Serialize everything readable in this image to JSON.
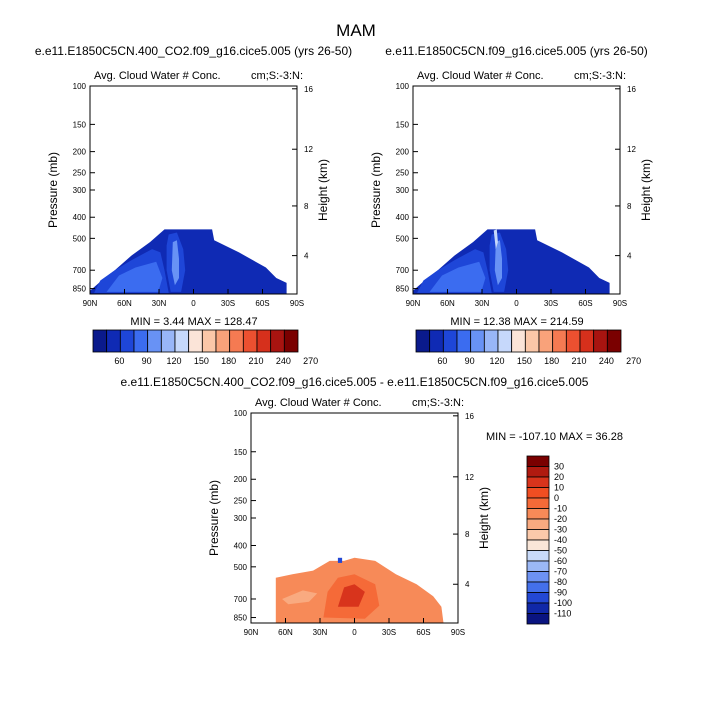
{
  "figure": {
    "title": "MAM"
  },
  "chart_data": [
    {
      "type": "contour",
      "title": "e.e11.E1850C5CN.400_CO2.f09_g16.cice5.005 (yrs 26-50)",
      "subtitle_left": "Avg. Cloud Water # Conc.",
      "subtitle_right": "cm;S:-3:N:",
      "ylabel": "Pressure (mb)",
      "ylabel_right": "Height (km)",
      "x_ticks": [
        "90N",
        "60N",
        "30N",
        "0",
        "30S",
        "60S",
        "90S"
      ],
      "y_ticks": [
        "100",
        "150",
        "200",
        "250",
        "300",
        "400",
        "500",
        "700",
        "850"
      ],
      "height_ticks": [
        "16",
        "12",
        "8",
        "4"
      ],
      "stats": "MIN =   3.44  MAX = 128.47",
      "colorbar_labels": [
        "60",
        "90",
        "120",
        "150",
        "180",
        "210",
        "240",
        "270"
      ],
      "colorbar_colors": [
        "#0a1a8c",
        "#0f2ab4",
        "#1e46d8",
        "#3b6cf0",
        "#6892f5",
        "#98b6f8",
        "#c6d8fb",
        "#fbe4d8",
        "#fbc7a8",
        "#f9a27a",
        "#f57a52",
        "#ec5030",
        "#d6301c",
        "#a81410",
        "#7a0000"
      ]
    },
    {
      "type": "contour",
      "title": "e.e11.E1850C5CN.f09_g16.cice5.005 (yrs 26-50)",
      "subtitle_left": "Avg. Cloud Water # Conc.",
      "subtitle_right": "cm;S:-3:N:",
      "ylabel": "Pressure (mb)",
      "ylabel_right": "Height (km)",
      "x_ticks": [
        "90N",
        "60N",
        "30N",
        "0",
        "30S",
        "60S",
        "90S"
      ],
      "y_ticks": [
        "100",
        "150",
        "200",
        "250",
        "300",
        "400",
        "500",
        "700",
        "850"
      ],
      "height_ticks": [
        "16",
        "12",
        "8",
        "4"
      ],
      "stats": "MIN =  12.38  MAX = 214.59",
      "colorbar_labels": [
        "60",
        "90",
        "120",
        "150",
        "180",
        "210",
        "240",
        "270"
      ],
      "colorbar_colors": [
        "#0a1a8c",
        "#0f2ab4",
        "#1e46d8",
        "#3b6cf0",
        "#6892f5",
        "#98b6f8",
        "#c6d8fb",
        "#fbe4d8",
        "#fbc7a8",
        "#f9a27a",
        "#f57a52",
        "#ec5030",
        "#d6301c",
        "#a81410",
        "#7a0000"
      ]
    },
    {
      "type": "contour",
      "title": "e.e11.E1850C5CN.400_CO2.f09_g16.cice5.005 - e.e11.E1850C5CN.f09_g16.cice5.005",
      "subtitle_left": "Avg. Cloud Water # Conc.",
      "subtitle_right": "cm;S:-3:N:",
      "ylabel": "Pressure (mb)",
      "ylabel_right": "Height (km)",
      "x_ticks": [
        "90N",
        "60N",
        "30N",
        "0",
        "30S",
        "60S",
        "90S"
      ],
      "y_ticks": [
        "100",
        "150",
        "200",
        "250",
        "300",
        "400",
        "500",
        "700",
        "850"
      ],
      "height_ticks": [
        "16",
        "12",
        "8",
        "4"
      ],
      "stats": "MIN = -107.10  MAX =  36.28",
      "colorbar_labels": [
        "30",
        "20",
        "10",
        "0",
        "-10",
        "-20",
        "-30",
        "-40",
        "-50",
        "-60",
        "-70",
        "-80",
        "-90",
        "-100",
        "-110"
      ],
      "colorbar_colors": [
        "#7a0000",
        "#b01a10",
        "#d8341c",
        "#f04e22",
        "#f56a38",
        "#f78a58",
        "#f9aa80",
        "#fbc9aa",
        "#f9e6d8",
        "#c8daf9",
        "#9bb8f6",
        "#6d92f2",
        "#4470ea",
        "#2348d4",
        "#1028a8",
        "#0a1480"
      ]
    }
  ]
}
